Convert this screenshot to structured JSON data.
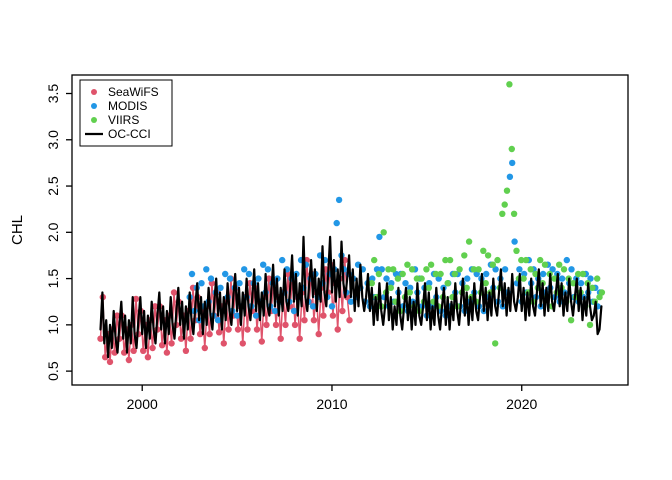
{
  "figure": {
    "background": "#ffffff",
    "axis_color": "#000000"
  },
  "chart_data": {
    "type": "line+scatter",
    "title": "",
    "xlabel": "",
    "ylabel": "CHL",
    "xlim": [
      1996.3,
      2025.6
    ],
    "ylim": [
      0.35,
      3.7
    ],
    "x_ticks": [
      2000,
      2010,
      2020
    ],
    "y_ticks": [
      0.5,
      1.0,
      1.5,
      2.0,
      2.5,
      3.0,
      3.5
    ],
    "grid": false,
    "legend": {
      "position": "top-left",
      "entries": [
        {
          "label": "SeaWiFS",
          "symbol": "point",
          "color": "#DF536B"
        },
        {
          "label": "MODIS",
          "symbol": "point",
          "color": "#2297E6"
        },
        {
          "label": "VIIRS",
          "symbol": "point",
          "color": "#61D04F"
        },
        {
          "label": "OC-CCI",
          "symbol": "line",
          "color": "#000000"
        }
      ]
    },
    "series": [
      {
        "name": "SeaWiFS",
        "color": "#DF536B",
        "style": "line+points",
        "line_width": 1.5,
        "x_start": 1997.8,
        "x_step": 0.125,
        "y": [
          0.85,
          1.3,
          0.65,
          0.9,
          0.6,
          0.95,
          0.7,
          1.1,
          0.85,
          1.1,
          0.7,
          0.95,
          0.62,
          1.0,
          0.72,
          1.28,
          0.9,
          1.15,
          0.72,
          1.0,
          0.65,
          1.05,
          0.75,
          1.2,
          0.95,
          1.2,
          0.78,
          1.05,
          0.7,
          1.1,
          0.8,
          1.35,
          1.0,
          1.25,
          0.85,
          1.1,
          0.72,
          1.15,
          0.85,
          1.4,
          1.05,
          1.3,
          0.9,
          1.15,
          0.75,
          1.2,
          0.9,
          1.45,
          1.1,
          1.35,
          0.92,
          1.2,
          0.8,
          1.25,
          0.95,
          1.5,
          1.1,
          1.4,
          0.95,
          1.2,
          0.8,
          1.3,
          0.95,
          1.45,
          1.15,
          1.4,
          0.95,
          1.25,
          0.82,
          1.3,
          1.0,
          1.5,
          1.15,
          1.45,
          1.0,
          1.3,
          0.85,
          1.35,
          1.0,
          1.55,
          1.2,
          1.5,
          1.0,
          1.3,
          0.85,
          1.35,
          1.05,
          1.7,
          1.25,
          1.55,
          1.05,
          1.35,
          0.9,
          1.4,
          1.1,
          1.6,
          1.35,
          1.65,
          1.1,
          1.45,
          0.95,
          1.5,
          1.15,
          1.7,
          1.3,
          1.05
        ]
      },
      {
        "name": "MODIS",
        "color": "#2297E6",
        "style": "points",
        "x_start": 2002.5,
        "x_step": 0.125,
        "y": [
          1.3,
          1.55,
          1.15,
          1.4,
          1.05,
          1.45,
          1.2,
          1.6,
          1.25,
          1.5,
          1.1,
          1.35,
          1.05,
          1.4,
          1.15,
          1.55,
          1.3,
          1.5,
          1.15,
          1.4,
          1.1,
          1.45,
          1.2,
          1.6,
          1.3,
          1.55,
          1.2,
          1.45,
          1.1,
          1.5,
          1.25,
          1.65,
          1.35,
          1.6,
          1.2,
          1.45,
          1.15,
          1.5,
          1.25,
          1.7,
          1.35,
          1.6,
          1.25,
          1.5,
          1.15,
          1.55,
          1.3,
          1.7,
          1.4,
          1.65,
          1.25,
          1.5,
          1.2,
          1.55,
          1.3,
          1.75,
          1.45,
          1.7,
          1.3,
          1.55,
          1.2,
          1.6,
          2.1,
          2.35,
          1.75,
          1.6,
          1.35,
          1.55,
          1.25,
          1.5,
          1.3,
          1.65,
          1.4,
          1.6,
          1.25,
          1.45,
          1.2,
          1.5,
          1.3,
          1.6,
          1.95,
          1.6,
          1.3,
          1.5,
          1.2,
          1.45,
          1.25,
          1.55,
          1.35,
          1.55,
          1.2,
          1.45,
          1.15,
          1.4,
          1.25,
          1.6,
          1.35,
          1.5,
          1.2,
          1.4,
          1.1,
          1.45,
          1.2,
          1.55,
          1.3,
          1.5,
          1.15,
          1.4,
          1.1,
          1.45,
          1.2,
          1.55,
          1.35,
          1.55,
          1.2,
          1.45,
          1.15,
          1.5,
          1.25,
          1.6,
          1.35,
          1.55,
          1.2,
          1.5,
          1.15,
          1.55,
          1.3,
          1.65,
          1.4,
          1.6,
          1.25,
          1.5,
          1.2,
          1.6,
          1.35,
          2.6,
          2.75,
          1.9,
          1.45,
          1.6,
          1.25,
          1.55,
          1.35,
          1.7,
          1.45,
          1.6,
          1.3,
          1.5,
          1.2,
          1.55,
          1.35,
          1.65,
          1.4,
          1.6,
          1.3,
          1.55,
          1.25,
          1.5,
          1.35,
          1.7,
          1.45,
          1.6,
          1.3,
          1.5,
          1.25,
          1.45,
          1.3,
          1.55,
          1.35,
          1.5,
          1.25,
          1.4,
          1.2,
          1.35
        ]
      },
      {
        "name": "VIIRS",
        "color": "#61D04F",
        "style": "points",
        "x_start": 2012.1,
        "x_step": 0.125,
        "y": [
          1.45,
          1.7,
          1.3,
          1.55,
          1.2,
          2.0,
          1.35,
          1.6,
          1.4,
          1.6,
          1.25,
          1.5,
          1.15,
          1.55,
          1.3,
          1.65,
          1.35,
          1.6,
          1.2,
          1.5,
          1.15,
          1.5,
          1.25,
          1.6,
          1.4,
          1.65,
          1.25,
          1.55,
          1.2,
          1.55,
          1.3,
          1.7,
          1.45,
          1.7,
          1.3,
          1.55,
          1.2,
          1.6,
          1.35,
          1.75,
          1.4,
          1.9,
          1.3,
          1.6,
          1.25,
          1.6,
          1.35,
          1.8,
          1.45,
          1.75,
          1.35,
          1.65,
          0.8,
          1.7,
          1.4,
          2.2,
          2.3,
          2.45,
          3.6,
          2.9,
          2.2,
          1.8,
          1.5,
          1.7,
          1.5,
          1.7,
          1.35,
          1.6,
          1.25,
          1.55,
          1.4,
          1.7,
          1.45,
          1.65,
          1.3,
          1.55,
          1.2,
          1.5,
          1.35,
          1.65,
          1.4,
          1.6,
          1.25,
          1.5,
          1.05,
          1.45,
          1.3,
          1.55,
          1.35,
          1.55,
          1.2,
          1.45,
          1.0,
          1.4,
          1.25,
          1.5,
          1.3,
          1.35
        ]
      },
      {
        "name": "OC-CCI",
        "color": "#000000",
        "style": "line",
        "line_width": 2.2,
        "x_start": 1997.8,
        "x_step": 0.1,
        "y": [
          0.95,
          1.35,
          0.8,
          1.05,
          0.65,
          1.0,
          0.75,
          1.15,
          0.85,
          0.7,
          1.0,
          1.25,
          0.85,
          1.1,
          0.7,
          1.05,
          0.8,
          1.3,
          0.9,
          0.75,
          1.05,
          1.3,
          0.9,
          1.15,
          0.75,
          1.1,
          0.85,
          1.25,
          0.95,
          0.8,
          1.1,
          1.35,
          0.95,
          1.2,
          0.8,
          1.15,
          0.9,
          1.3,
          1.0,
          0.85,
          1.15,
          1.4,
          1.0,
          1.25,
          0.85,
          1.2,
          0.95,
          1.35,
          1.05,
          0.9,
          1.2,
          1.45,
          1.05,
          1.3,
          0.9,
          1.25,
          1.0,
          1.4,
          1.1,
          0.95,
          1.25,
          1.5,
          1.1,
          1.35,
          0.95,
          1.3,
          1.05,
          1.45,
          1.15,
          1.0,
          1.3,
          1.55,
          1.15,
          1.4,
          1.0,
          1.35,
          1.1,
          1.5,
          1.2,
          1.05,
          1.3,
          1.6,
          1.15,
          1.45,
          1.05,
          1.35,
          1.1,
          1.55,
          1.2,
          1.1,
          1.35,
          1.65,
          1.2,
          1.5,
          1.1,
          1.4,
          1.15,
          1.6,
          1.25,
          1.15,
          1.4,
          1.75,
          1.25,
          1.55,
          1.1,
          1.45,
          1.2,
          1.95,
          1.3,
          1.15,
          1.45,
          1.7,
          1.3,
          1.6,
          1.15,
          1.5,
          1.25,
          1.85,
          1.35,
          1.2,
          1.55,
          1.95,
          1.35,
          1.7,
          1.25,
          1.6,
          1.3,
          1.9,
          1.45,
          1.3,
          1.5,
          1.75,
          1.3,
          1.6,
          1.15,
          1.5,
          1.2,
          1.65,
          1.3,
          1.15,
          1.3,
          1.55,
          1.15,
          1.4,
          1.0,
          1.3,
          1.05,
          1.45,
          1.15,
          1.0,
          1.2,
          1.45,
          1.05,
          1.3,
          0.95,
          1.2,
          1.0,
          1.4,
          1.1,
          0.95,
          1.2,
          1.4,
          1.05,
          1.3,
          0.95,
          1.25,
          1.0,
          1.45,
          1.1,
          1.0,
          1.2,
          1.45,
          1.05,
          1.35,
          0.95,
          1.2,
          1.0,
          1.4,
          1.1,
          0.95,
          1.2,
          1.4,
          1.0,
          1.3,
          0.95,
          1.25,
          1.05,
          1.45,
          1.15,
          1.0,
          1.25,
          1.5,
          1.1,
          1.35,
          1.0,
          1.3,
          1.05,
          1.45,
          1.15,
          1.05,
          1.3,
          1.55,
          1.15,
          1.4,
          1.05,
          1.35,
          1.1,
          1.5,
          1.2,
          1.1,
          1.35,
          1.6,
          1.2,
          1.45,
          1.1,
          1.4,
          1.15,
          1.55,
          1.25,
          1.15,
          1.3,
          1.55,
          1.15,
          1.4,
          1.05,
          1.35,
          1.1,
          1.5,
          1.2,
          1.1,
          1.35,
          1.6,
          1.2,
          1.45,
          1.1,
          1.4,
          1.15,
          1.55,
          1.25,
          1.15,
          1.35,
          1.55,
          1.2,
          1.45,
          1.1,
          1.35,
          1.15,
          1.5,
          1.25,
          1.1,
          1.3,
          1.5,
          1.15,
          1.4,
          1.05,
          1.3,
          1.1,
          1.45,
          1.2,
          1.05,
          1.1,
          1.25,
          0.9,
          0.95,
          1.2
        ]
      }
    ]
  }
}
